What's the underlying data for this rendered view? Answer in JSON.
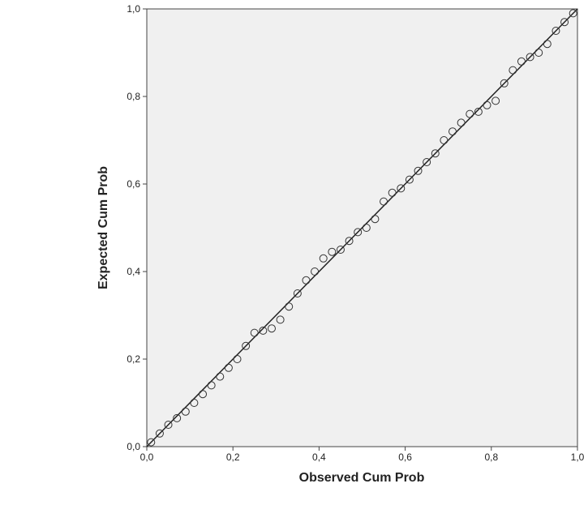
{
  "chart_data": {
    "type": "scatter",
    "x_label": "Observed Cum Prob",
    "y_label": "Expected Cum Prob",
    "xlim": [
      0,
      1
    ],
    "ylim": [
      0,
      1
    ],
    "xticks": [
      {
        "value": 0,
        "label": "0,0"
      },
      {
        "value": 0.2,
        "label": "0,2"
      },
      {
        "value": 0.4,
        "label": "0,4"
      },
      {
        "value": 0.6,
        "label": "0,6"
      },
      {
        "value": 0.8,
        "label": "0,8"
      },
      {
        "value": 1,
        "label": "1,0"
      }
    ],
    "yticks": [
      {
        "value": 0,
        "label": "0,0"
      },
      {
        "value": 0.2,
        "label": "0,2"
      },
      {
        "value": 0.4,
        "label": "0,4"
      },
      {
        "value": 0.6,
        "label": "0,6"
      },
      {
        "value": 0.8,
        "label": "0,8"
      },
      {
        "value": 1,
        "label": "1,0"
      }
    ],
    "reference_line": true,
    "color": "#333333",
    "series": [
      {
        "x": [
          0.01,
          0.03,
          0.05,
          0.07,
          0.09,
          0.11,
          0.13,
          0.15,
          0.17,
          0.19,
          0.21,
          0.23,
          0.25,
          0.27,
          0.29,
          0.31,
          0.33,
          0.35,
          0.37,
          0.39,
          0.41,
          0.43,
          0.45,
          0.47,
          0.49,
          0.51,
          0.53,
          0.55,
          0.57,
          0.59,
          0.61,
          0.63,
          0.65,
          0.67,
          0.69,
          0.71,
          0.73,
          0.75,
          0.77,
          0.79,
          0.81,
          0.83,
          0.85,
          0.87,
          0.89,
          0.91,
          0.93,
          0.95,
          0.97,
          0.99
        ],
        "values": [
          0.01,
          0.03,
          0.05,
          0.065,
          0.08,
          0.1,
          0.12,
          0.14,
          0.16,
          0.18,
          0.2,
          0.23,
          0.26,
          0.265,
          0.27,
          0.29,
          0.32,
          0.35,
          0.38,
          0.4,
          0.43,
          0.445,
          0.45,
          0.47,
          0.49,
          0.5,
          0.52,
          0.56,
          0.58,
          0.59,
          0.61,
          0.63,
          0.65,
          0.67,
          0.7,
          0.72,
          0.74,
          0.76,
          0.765,
          0.78,
          0.79,
          0.83,
          0.86,
          0.88,
          0.89,
          0.9,
          0.92,
          0.95,
          0.97,
          0.99
        ]
      }
    ]
  }
}
